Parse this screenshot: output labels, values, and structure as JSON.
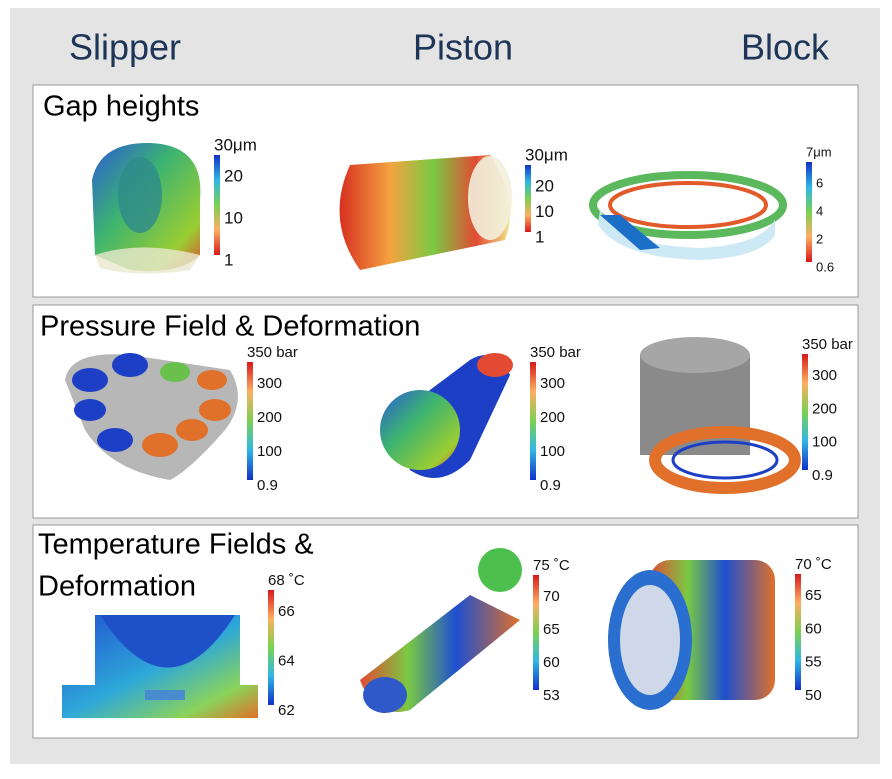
{
  "headers": [
    "Slipper",
    "Piston",
    "Block"
  ],
  "rows": [
    {
      "title_lines": [
        "Gap heights"
      ],
      "colorbars": [
        {
          "labels": [
            "30μm",
            "20",
            "10",
            "1"
          ]
        },
        {
          "labels": [
            "30μm",
            "20",
            "10",
            "1"
          ]
        },
        {
          "labels": [
            "7μm",
            "6",
            "4",
            "2",
            "0.6"
          ]
        }
      ]
    },
    {
      "title_lines": [
        "Pressure Field & Deformation"
      ],
      "colorbars": [
        {
          "labels": [
            "350 bar",
            "300",
            "200",
            "100",
            "0.9"
          ]
        },
        {
          "labels": [
            "350 bar",
            "300",
            "200",
            "100",
            "0.9"
          ]
        },
        {
          "labels": [
            "350 bar",
            "300",
            "200",
            "100",
            "0.9"
          ]
        }
      ]
    },
    {
      "title_lines": [
        "Temperature Fields &",
        "Deformation"
      ],
      "colorbars": [
        {
          "labels": [
            "68 ˚C",
            "66",
            "64",
            "62"
          ]
        },
        {
          "labels": [
            "75 ˚C",
            "70",
            "65",
            "60",
            "53"
          ]
        },
        {
          "labels": [
            "70 ˚C",
            "65",
            "60",
            "55",
            "50"
          ]
        }
      ]
    }
  ]
}
